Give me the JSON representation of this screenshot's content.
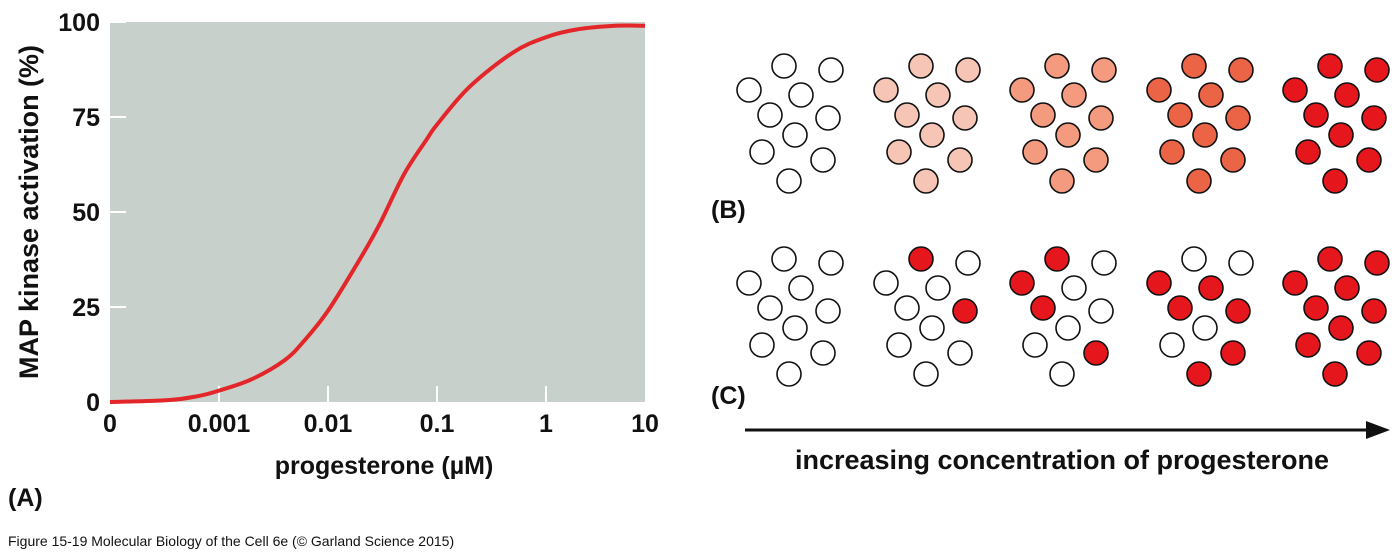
{
  "chart_data": [
    {
      "panel": "(A)",
      "type": "line",
      "xlabel": "progesterone (µM)",
      "ylabel": "MAP kinase activation (%)",
      "x_scale": "log",
      "x_ticks": [
        {
          "value": 0,
          "label": "0"
        },
        {
          "value": 0.001,
          "label": "0.001"
        },
        {
          "value": 0.01,
          "label": "0.01"
        },
        {
          "value": 0.1,
          "label": "0.1"
        },
        {
          "value": 1,
          "label": "1"
        },
        {
          "value": 10,
          "label": "10"
        }
      ],
      "y_ticks": [
        {
          "value": 0,
          "label": "0"
        },
        {
          "value": 25,
          "label": "25"
        },
        {
          "value": 50,
          "label": "50"
        },
        {
          "value": 75,
          "label": "75"
        },
        {
          "value": 100,
          "label": "100"
        }
      ],
      "ylim": [
        0,
        100
      ],
      "series": [
        {
          "color": "#e3262a",
          "x": [
            0,
            0.0002,
            0.0005,
            0.001,
            0.002,
            0.004,
            0.006,
            0.01,
            0.02,
            0.03,
            0.05,
            0.08,
            0.1,
            0.2,
            0.5,
            1,
            2,
            5,
            10
          ],
          "values": [
            0,
            0.5,
            1.5,
            3,
            6,
            11,
            16,
            24,
            38,
            47,
            60,
            69,
            73,
            83,
            92,
            96,
            98,
            99,
            99
          ]
        }
      ],
      "background": "#c8d0cb"
    },
    {
      "panel": "(B)",
      "type": "cell-grid",
      "description_levels": [
        0,
        0.25,
        0.5,
        0.75,
        1.0
      ],
      "note": "graded response: every cell at same intermediate level"
    },
    {
      "panel": "(C)",
      "type": "cell-grid",
      "note": "all-or-none response: fraction of cells fully activated"
    }
  ],
  "panels": {
    "a_label": "(A)",
    "b_label": "(B)",
    "c_label": "(C)"
  },
  "arrow_label": "increasing concentration of progesterone",
  "caption": "Figure 15-19  Molecular Biology of the Cell 6e (© Garland Science 2015)",
  "colors": {
    "curve": "#e3262a",
    "plot_bg": "#c8d0cb",
    "full": "#e5161c",
    "shades": [
      "#ffffff",
      "#f6c5b6",
      "#f39a7f",
      "#ec6446",
      "#e5161c"
    ]
  },
  "cells": {
    "graded_levels": [
      0,
      1,
      2,
      3,
      4
    ],
    "allornone_active": [
      [
        false,
        false,
        false,
        false,
        false,
        false,
        false,
        false,
        false,
        false
      ],
      [
        true,
        false,
        false,
        false,
        false,
        true,
        false,
        false,
        false,
        false
      ],
      [
        true,
        false,
        true,
        false,
        true,
        false,
        false,
        false,
        true,
        false
      ],
      [
        false,
        false,
        true,
        true,
        true,
        true,
        false,
        false,
        true,
        true
      ],
      [
        true,
        true,
        true,
        true,
        true,
        true,
        true,
        true,
        true,
        true
      ]
    ]
  }
}
